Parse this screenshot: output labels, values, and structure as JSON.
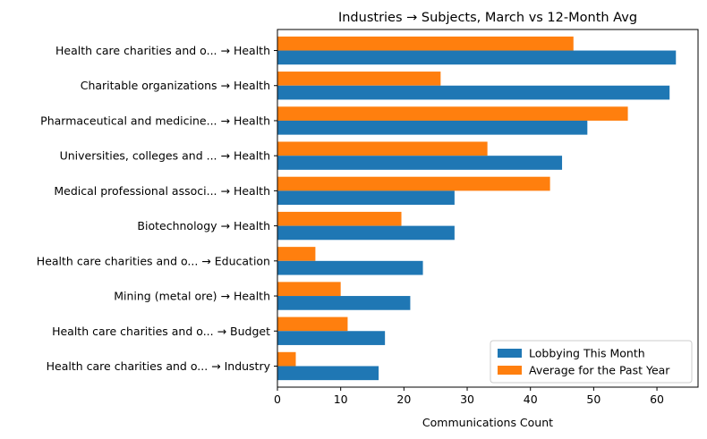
{
  "chart_data": {
    "type": "bar",
    "orientation": "horizontal",
    "title": "Industries → Subjects, March vs 12-Month Avg",
    "xlabel": "Communications Count",
    "ylabel": "",
    "xlim": [
      0,
      66.5
    ],
    "xticks": [
      0,
      10,
      20,
      30,
      40,
      50,
      60
    ],
    "grid": false,
    "legend_position": "lower-right",
    "categories": [
      "Health care charities and o... → Health",
      "Charitable organizations → Health",
      "Pharmaceutical and medicine... → Health",
      "Universities, colleges and ... → Health",
      "Medical professional associ... → Health",
      "Biotechnology → Health",
      "Health care charities and o... → Education",
      "Mining (metal ore) → Health",
      "Health care charities and o... → Budget",
      "Health care charities and o... → Industry"
    ],
    "series": [
      {
        "name": "Lobbying This Month",
        "color": "#1f77b4",
        "values": [
          63,
          62,
          49,
          45,
          28,
          28,
          23,
          21,
          17,
          16
        ]
      },
      {
        "name": "Average for the Past Year",
        "color": "#ff7f0e",
        "values": [
          46.8,
          25.8,
          55.4,
          33.2,
          43.1,
          19.6,
          6.0,
          10.0,
          11.1,
          2.9
        ]
      }
    ]
  }
}
